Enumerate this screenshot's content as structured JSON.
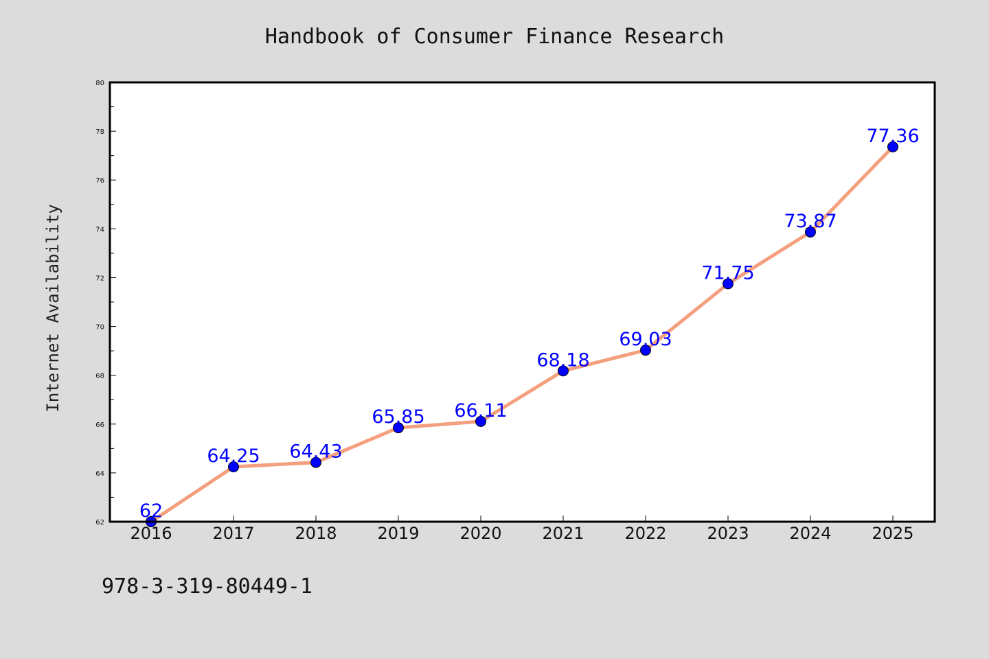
{
  "colors": {
    "background": "#dcdcdc",
    "plot_background": "#ffffff",
    "line": "#f4a07e",
    "marker": "#0000ff",
    "data_label": "#0000ff",
    "frame": "#000000"
  },
  "footer": {
    "isbn": "978-3-319-80449-1"
  },
  "chart_data": {
    "type": "line",
    "title": "Handbook of Consumer Finance Research",
    "xlabel": "",
    "ylabel": "Internet Availability",
    "categories": [
      "2016",
      "2017",
      "2018",
      "2019",
      "2020",
      "2021",
      "2022",
      "2023",
      "2024",
      "2025"
    ],
    "series": [
      {
        "values": [
          62,
          64.25,
          64.43,
          65.85,
          66.11,
          68.18,
          69.03,
          71.75,
          73.87,
          77.36
        ],
        "labels": [
          "62",
          "64.25",
          "64.43",
          "65.85",
          "66.11",
          "68.18",
          "69.03",
          "71.75",
          "73.87",
          "77.36"
        ]
      }
    ],
    "ylim": [
      62,
      80
    ],
    "yticks": [
      "62",
      "64",
      "66",
      "68",
      "70",
      "72",
      "74",
      "76",
      "78",
      "80"
    ],
    "grid": false,
    "legend": "none"
  }
}
